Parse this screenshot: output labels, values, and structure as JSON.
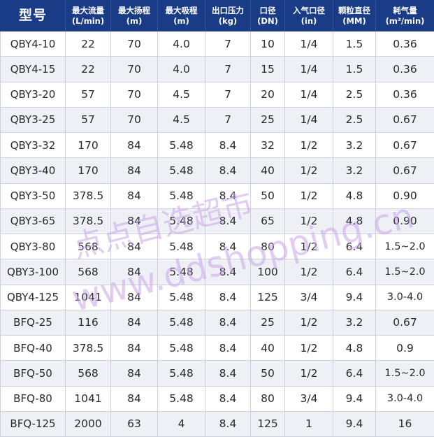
{
  "header": {
    "model": "型号",
    "max_flow": {
      "line1": "最大流量",
      "line2": "(L/min)"
    },
    "max_head": {
      "line1": "最大扬程",
      "line2": "(m)"
    },
    "max_suction": {
      "line1": "最大吸程",
      "line2": "(m)"
    },
    "outlet_pressure": {
      "line1": "出口压力",
      "line2": "(kg)"
    },
    "bore": {
      "line1": "口径",
      "line2": "(DN)"
    },
    "air_inlet": {
      "line1": "入气口径",
      "line2": "(in)"
    },
    "particle_diameter": {
      "line1": "颗粒直径",
      "line2": "(MM)"
    },
    "air_consumption": {
      "line1": "耗气量",
      "line2": "(m³/min)"
    }
  },
  "rows": [
    [
      "QBY4-10",
      "22",
      "70",
      "4.0",
      "7",
      "10",
      "1/4",
      "1.5",
      "0.36"
    ],
    [
      "QBY4-15",
      "22",
      "70",
      "4.0",
      "7",
      "15",
      "1/4",
      "1.5",
      "0.36"
    ],
    [
      "QBY3-20",
      "57",
      "70",
      "4.5",
      "7",
      "20",
      "1/4",
      "2.5",
      "0.36"
    ],
    [
      "QBY3-25",
      "57",
      "70",
      "4.5",
      "7",
      "25",
      "1/4",
      "2.5",
      "0.67"
    ],
    [
      "QBY3-32",
      "170",
      "84",
      "5.48",
      "8.4",
      "32",
      "1/2",
      "3.2",
      "0.67"
    ],
    [
      "QBY3-40",
      "170",
      "84",
      "5.48",
      "8.4",
      "40",
      "1/2",
      "3.2",
      "0.67"
    ],
    [
      "QBY3-50",
      "378.5",
      "84",
      "5.48",
      "8.4",
      "50",
      "1/2",
      "4.8",
      "0.90"
    ],
    [
      "QBY3-65",
      "378.5",
      "84",
      "5.48",
      "8.4",
      "65",
      "1/2",
      "4.8",
      "0.90"
    ],
    [
      "QBY3-80",
      "568",
      "84",
      "5.48",
      "8.4",
      "80",
      "1/2",
      "6.4",
      "1.5~2.0"
    ],
    [
      "QBY3-100",
      "568",
      "84",
      "5.48",
      "8.4",
      "100",
      "1/2",
      "6.4",
      "1.5~2.0"
    ],
    [
      "QBY4-125",
      "1041",
      "84",
      "5.48",
      "8.4",
      "125",
      "3/4",
      "9.4",
      "3.0-4.0"
    ],
    [
      "BFQ-25",
      "116",
      "84",
      "5.48",
      "8.4",
      "25",
      "1/2",
      "3.2",
      "0.67"
    ],
    [
      "BFQ-40",
      "378.5",
      "84",
      "5.48",
      "8.4",
      "40",
      "1/2",
      "4.8",
      "0.9"
    ],
    [
      "BFQ-50",
      "568",
      "84",
      "5.48",
      "8.4",
      "50",
      "1/2",
      "6.4",
      "1.5~2.0"
    ],
    [
      "BFQ-80",
      "1041",
      "84",
      "5.48",
      "8.4",
      "80",
      "3/4",
      "9.4",
      "3.0-4.0"
    ],
    [
      "BFQ-125",
      "2000",
      "63",
      "4",
      "8.4",
      "125",
      "1",
      "9.4",
      "16"
    ]
  ],
  "watermark": {
    "line1": "点点自选超市",
    "line2": "www.ddshopping.cn",
    "color": "#c9a6e8"
  },
  "colors": {
    "header_bg": "#1a3c86",
    "header_text": "#ffffff",
    "stripe": "#eef0f6",
    "border": "#cdd2da"
  }
}
